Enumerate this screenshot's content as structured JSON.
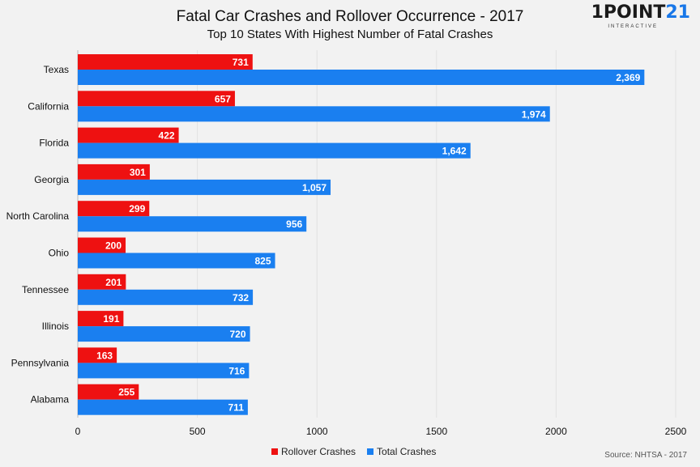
{
  "title": "Fatal Car Crashes and Rollover Occurrence - 2017",
  "subtitle": "Top 10 States With Highest Number of Fatal Crashes",
  "logo": {
    "main": "1POINT",
    "accent": "21",
    "sub": "INTERACTIVE"
  },
  "source": "Source: NHTSA - 2017",
  "chart_data": {
    "type": "bar",
    "orientation": "horizontal",
    "title": "Fatal Car Crashes and Rollover Occurrence - 2017",
    "subtitle": "Top 10 States With Highest Number of Fatal Crashes",
    "categories": [
      "Texas",
      "California",
      "Florida",
      "Georgia",
      "North Carolina",
      "Ohio",
      "Tennessee",
      "Illinois",
      "Pennsylvania",
      "Alabama"
    ],
    "series": [
      {
        "name": "Rollover Crashes",
        "color": "#ee1111",
        "values": [
          731,
          657,
          422,
          301,
          299,
          200,
          201,
          191,
          163,
          255
        ],
        "labels": [
          "731",
          "657",
          "422",
          "301",
          "299",
          "200",
          "201",
          "191",
          "163",
          "255"
        ]
      },
      {
        "name": "Total Crashes",
        "color": "#1a7ff0",
        "values": [
          2369,
          1974,
          1642,
          1057,
          956,
          825,
          732,
          720,
          716,
          711
        ],
        "labels": [
          "2,369",
          "1,974",
          "1,642",
          "1,057",
          "956",
          "825",
          "732",
          "720",
          "716",
          "711"
        ]
      }
    ],
    "xlim": [
      0,
      2500
    ],
    "xticks": [
      "0",
      "500",
      "1000",
      "1500",
      "2000",
      "2500"
    ],
    "grid": true,
    "legend": "bottom"
  }
}
